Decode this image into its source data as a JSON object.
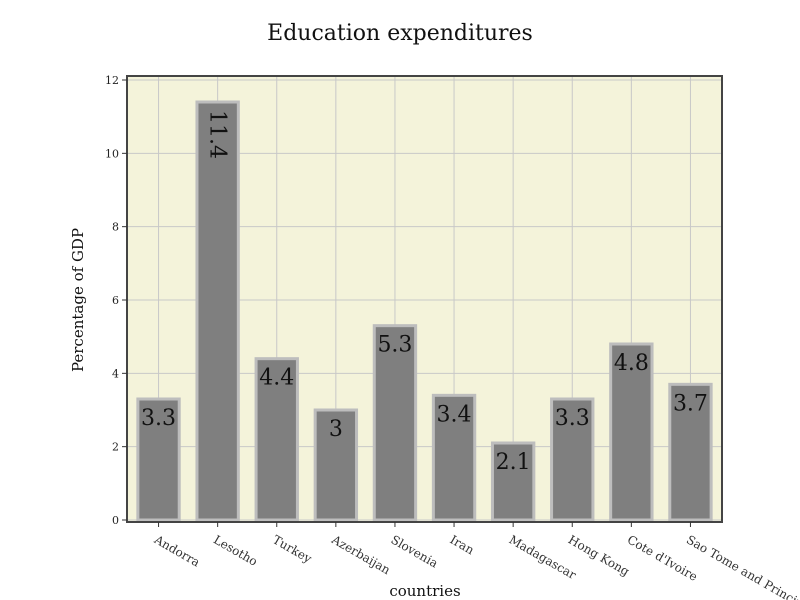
{
  "chart_data": {
    "type": "bar",
    "title": "Education expenditures",
    "xlabel": "countries",
    "ylabel": "Percentage of GDP",
    "categories": [
      "Andorra",
      "Lesotho",
      "Turkey",
      "Azerbaijan",
      "Slovenia",
      "Iran",
      "Madagascar",
      "Hong Kong",
      "Cote d'Ivoire",
      "Sao Tome and Principe"
    ],
    "values": [
      3.3,
      11.4,
      4.4,
      3,
      5.3,
      3.4,
      2.1,
      3.3,
      4.8,
      3.7
    ],
    "data_labels": [
      "3.3",
      "11.4",
      "4.4",
      "3",
      "5.3",
      "3.4",
      "2.1",
      "3.3",
      "4.8",
      "3.7"
    ],
    "ylim": [
      0,
      12
    ],
    "yticks": [
      0,
      2,
      4,
      6,
      8,
      10,
      12
    ],
    "grid": true,
    "legend": "none",
    "colors": {
      "plot_background": "#f4f3da",
      "bar_fill": "#7f7f7f",
      "bar_edge": "#bdbdbd",
      "grid": "#c8c8c8"
    }
  }
}
